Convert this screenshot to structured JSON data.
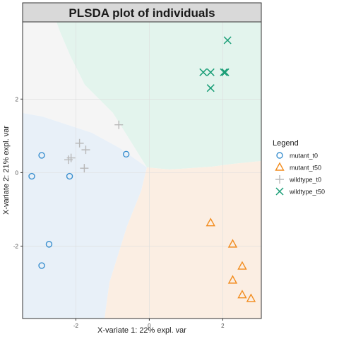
{
  "chart_data": {
    "type": "scatter",
    "title": "PLSDA plot of individuals",
    "xlabel": "X-variate 1: 22% expl. var",
    "ylabel": "X-variate 2: 21% expl. var",
    "xlim": [
      -3.45,
      3.05
    ],
    "ylim": [
      -3.97,
      4.1
    ],
    "x_ticks": [
      -2,
      0,
      2
    ],
    "y_ticks": [
      -2,
      0,
      2
    ],
    "grid": true,
    "legend_title": "Legend",
    "legend_position": "right",
    "background_regions": [
      {
        "class": "wildtype_t0",
        "color": "#f5f5f5"
      },
      {
        "class": "wildtype_t50",
        "color": "#e3f4ed"
      },
      {
        "class": "mutant_t0",
        "color": "#e8f0f8"
      },
      {
        "class": "mutant_t50",
        "color": "#fbeee3"
      }
    ],
    "series": [
      {
        "name": "mutant_t0",
        "marker": "circle",
        "color": "#3a8fcf",
        "points": [
          [
            -2.93,
            0.47
          ],
          [
            -3.2,
            -0.1
          ],
          [
            -2.17,
            -0.1
          ],
          [
            -0.63,
            0.5
          ],
          [
            -2.73,
            -1.95
          ],
          [
            -2.93,
            -2.53
          ]
        ]
      },
      {
        "name": "mutant_t50",
        "marker": "triangle",
        "color": "#f28c1e",
        "points": [
          [
            1.67,
            -1.37
          ],
          [
            2.27,
            -1.95
          ],
          [
            2.53,
            -2.55
          ],
          [
            2.27,
            -2.93
          ],
          [
            2.53,
            -3.33
          ],
          [
            2.77,
            -3.43
          ]
        ]
      },
      {
        "name": "wildtype_t0",
        "marker": "plus",
        "color": "#b8b8b8",
        "points": [
          [
            -0.83,
            1.3
          ],
          [
            -1.9,
            0.8
          ],
          [
            -1.73,
            0.62
          ],
          [
            -2.13,
            0.4
          ],
          [
            -2.2,
            0.35
          ],
          [
            -1.77,
            0.12
          ]
        ]
      },
      {
        "name": "wildtype_t50",
        "marker": "cross",
        "color": "#1a9e77",
        "points": [
          [
            2.13,
            3.6
          ],
          [
            1.47,
            2.73
          ],
          [
            1.67,
            2.73
          ],
          [
            2.03,
            2.73
          ],
          [
            2.07,
            2.73
          ],
          [
            1.67,
            2.3
          ]
        ]
      }
    ]
  }
}
